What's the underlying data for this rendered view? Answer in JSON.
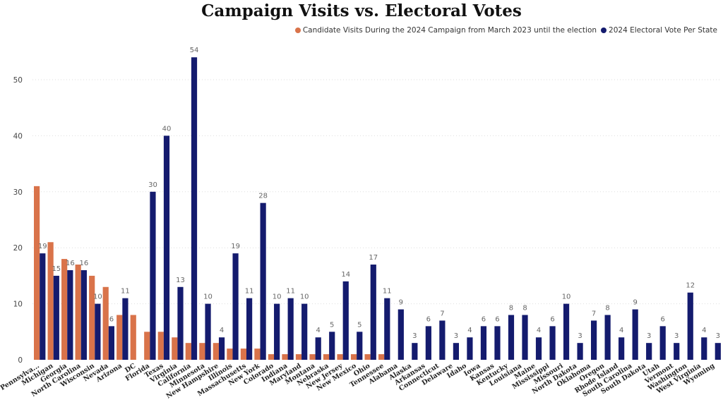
{
  "chart_data": {
    "type": "bar",
    "title": "Campaign Visits vs. Electoral Votes",
    "xlabel": "",
    "ylabel": "",
    "ylim": [
      0,
      55
    ],
    "yticks": [
      0,
      10,
      20,
      30,
      40,
      50
    ],
    "grid": true,
    "legend_position": "top-right",
    "categories": [
      "Pennsylva...",
      "Michigan",
      "Georgia",
      "North Carolina",
      "Wisconsin",
      "Nevada",
      "Arizona",
      "DC",
      "Florida",
      "Texas",
      "Virginia",
      "California",
      "Minnesota",
      "New Hampshire",
      "Illinois",
      "Massachusetts",
      "New York",
      "Colorado",
      "Indiana",
      "Maryland",
      "Montana",
      "Nebraska",
      "New Jersey",
      "New Mexico",
      "Ohio",
      "Tennessee",
      "Alabama",
      "Alaska",
      "Arkansas",
      "Connecticut",
      "Delaware",
      "Idaho",
      "Iowa",
      "Kansas",
      "Kentucky",
      "Louisiana",
      "Maine",
      "Mississippi",
      "Missouri",
      "North Dakota",
      "Oklahoma",
      "Oregon",
      "Rhode Island",
      "South Carolina",
      "South Dakota",
      "Utah",
      "Vermont",
      "Washington",
      "West Virginia",
      "Wyoming"
    ],
    "series": [
      {
        "name": "Candidate Visits During the 2024 Campaign from March 2023 until the election",
        "color": "#D9734A",
        "show_labels": false,
        "values": [
          31,
          21,
          18,
          17,
          15,
          13,
          8,
          8,
          5,
          5,
          4,
          3,
          3,
          3,
          2,
          2,
          2,
          1,
          1,
          1,
          1,
          1,
          1,
          1,
          1,
          1,
          0,
          0,
          0,
          0,
          0,
          0,
          0,
          0,
          0,
          0,
          0,
          0,
          0,
          0,
          0,
          0,
          0,
          0,
          0,
          0,
          0,
          0,
          0,
          0
        ]
      },
      {
        "name": "2024 Electoral Vote Per State",
        "color": "#141B6E",
        "show_labels": true,
        "values": [
          19,
          15,
          16,
          16,
          10,
          6,
          11,
          null,
          30,
          40,
          13,
          54,
          10,
          4,
          19,
          11,
          28,
          10,
          11,
          10,
          4,
          5,
          14,
          5,
          17,
          11,
          9,
          3,
          6,
          7,
          3,
          4,
          6,
          6,
          8,
          8,
          4,
          6,
          10,
          3,
          7,
          8,
          4,
          9,
          3,
          6,
          3,
          12,
          4,
          3
        ]
      }
    ]
  }
}
